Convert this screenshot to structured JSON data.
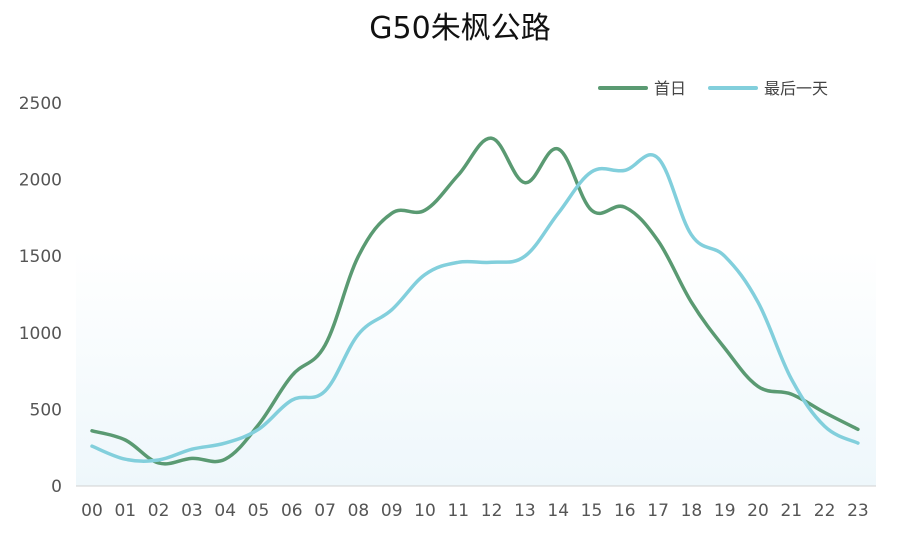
{
  "chart_data": {
    "type": "line",
    "title": "G50朱枫公路",
    "xlabel": "",
    "ylabel": "",
    "categories": [
      "00",
      "01",
      "02",
      "03",
      "04",
      "05",
      "06",
      "07",
      "08",
      "09",
      "10",
      "11",
      "12",
      "13",
      "14",
      "15",
      "16",
      "17",
      "18",
      "19",
      "20",
      "21",
      "22",
      "23"
    ],
    "yticks": [
      "0",
      "500",
      "1000",
      "1500",
      "2000",
      "2500"
    ],
    "ylim": [
      0,
      2500
    ],
    "grid": false,
    "legend_position": "top-right",
    "series": [
      {
        "name": "首日",
        "color": "#5a9a72",
        "values": [
          360,
          300,
          150,
          180,
          175,
          400,
          720,
          920,
          1500,
          1780,
          1800,
          2030,
          2270,
          1980,
          2200,
          1800,
          1820,
          1600,
          1200,
          900,
          650,
          600,
          480,
          370
        ]
      },
      {
        "name": "最后一天",
        "color": "#82cfdc",
        "values": [
          260,
          175,
          170,
          240,
          280,
          370,
          560,
          620,
          990,
          1150,
          1380,
          1460,
          1460,
          1500,
          1780,
          2050,
          2060,
          2140,
          1640,
          1500,
          1200,
          700,
          390,
          280
        ]
      }
    ]
  }
}
